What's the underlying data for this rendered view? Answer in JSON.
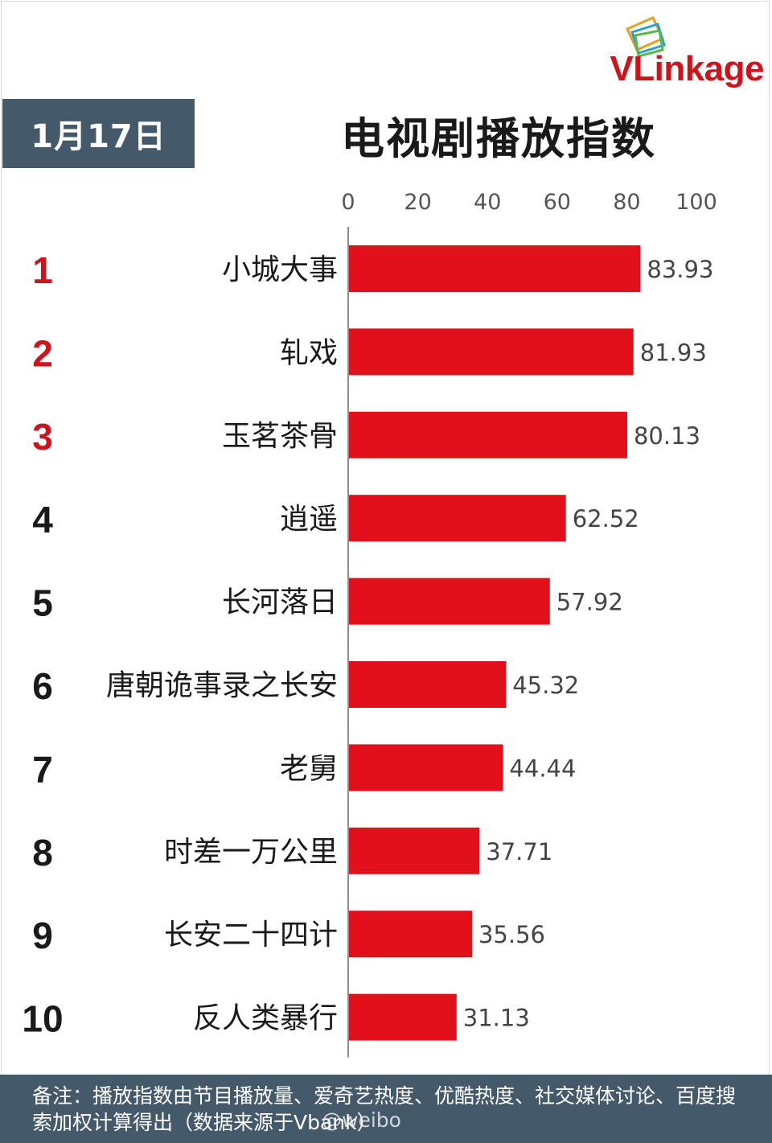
{
  "logo": {
    "text_v": "V",
    "text_rest": "Linkage"
  },
  "date_label": "1月17日",
  "footer": {
    "note": "备注：播放指数由节目播放量、爱奇艺热度、优酷热度、社交媒体讨论、百度搜索加权计算得出（数据来源于Vbank）",
    "watermark": "@weibo"
  },
  "colors": {
    "bar": "#e2101b",
    "rank_top": "#d0121b",
    "rank_other": "#1a1a1a",
    "header_bg": "#44596a"
  },
  "chart_data": {
    "type": "bar",
    "orientation": "horizontal",
    "title": "电视剧播放指数",
    "xlim": [
      0,
      100
    ],
    "x_ticks": [
      0,
      20,
      40,
      60,
      80,
      100
    ],
    "grid": false,
    "ranks": [
      "1",
      "2",
      "3",
      "4",
      "5",
      "6",
      "7",
      "8",
      "9",
      "10"
    ],
    "categories": [
      "小城大事",
      "轧戏",
      "玉茗茶骨",
      "逍遥",
      "长河落日",
      "唐朝诡事录之长安",
      "老舅",
      "时差一万公里",
      "长安二十四计",
      "反人类暴行"
    ],
    "values": [
      83.93,
      81.93,
      80.13,
      62.52,
      57.92,
      45.32,
      44.44,
      37.71,
      35.56,
      31.13
    ],
    "value_labels": [
      "83.93",
      "81.93",
      "80.13",
      "62.52",
      "57.92",
      "45.32",
      "44.44",
      "37.71",
      "35.56",
      "31.13"
    ]
  }
}
